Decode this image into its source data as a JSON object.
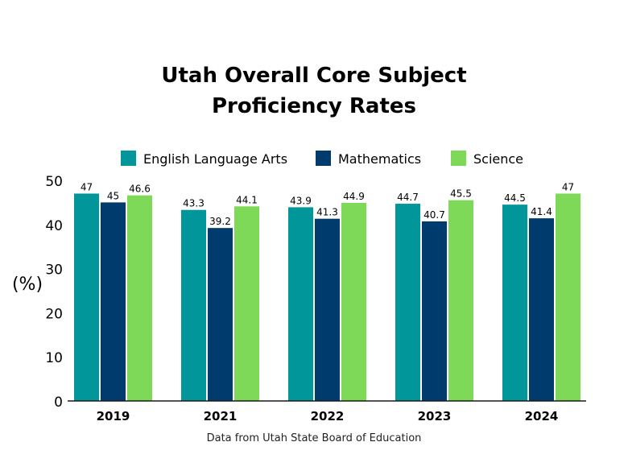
{
  "chart_data": {
    "type": "bar",
    "title": [
      "Utah Overall Core Subject",
      "Proficiency Rates"
    ],
    "ylabel": "(%)",
    "xlabel": "",
    "caption": "Data from Utah State Board of Education",
    "categories": [
      "2019",
      "2021",
      "2022",
      "2023",
      "2024"
    ],
    "series": [
      {
        "name": "English Language Arts",
        "color": "#00969a",
        "values": [
          47,
          43.3,
          43.9,
          44.7,
          44.5
        ],
        "labels": [
          "47",
          "43.3",
          "43.9",
          "44.7",
          "44.5"
        ]
      },
      {
        "name": "Mathematics",
        "color": "#003b6e",
        "values": [
          45,
          39.2,
          41.3,
          40.7,
          41.4
        ],
        "labels": [
          "45",
          "39.2",
          "41.3",
          "40.7",
          "41.4"
        ]
      },
      {
        "name": "Science",
        "color": "#7dd957",
        "values": [
          46.6,
          44.1,
          44.9,
          45.5,
          47
        ],
        "labels": [
          "46.6",
          "44.1",
          "44.9",
          "45.5",
          "47"
        ]
      }
    ],
    "yticks": [
      "0",
      "10",
      "20",
      "30",
      "40",
      "50"
    ],
    "ylim": [
      0,
      50
    ],
    "grid": false,
    "legend": "top"
  }
}
